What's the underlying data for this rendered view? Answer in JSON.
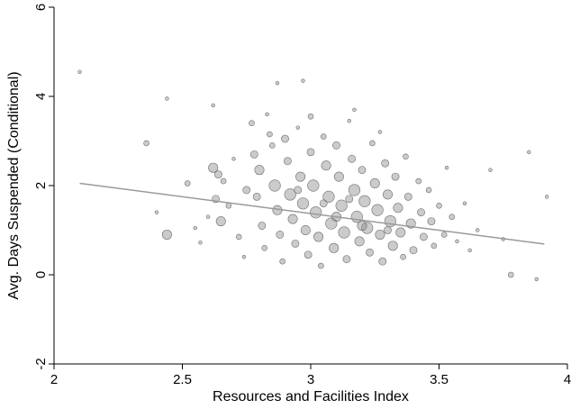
{
  "chart_data": {
    "type": "scatter",
    "title": "",
    "xlabel": "Resources and Facilities Index",
    "ylabel": "Avg. Days Suspended (Conditional)",
    "xlim": [
      2,
      4
    ],
    "ylim": [
      -2,
      6
    ],
    "x_ticks": [
      2,
      2.5,
      3,
      3.5,
      4
    ],
    "x_tick_labels": [
      "2",
      "2.5",
      "3",
      "3.5",
      "4"
    ],
    "y_ticks": [
      -2,
      0,
      2,
      4,
      6
    ],
    "y_tick_labels": [
      "-2",
      "0",
      "2",
      "4",
      "6"
    ],
    "grid": false,
    "legend": "none",
    "marker_style": "hollow circles, size proportional to weight",
    "marker_color": "#8c8c8c",
    "fit_line": {
      "type": "linear",
      "x": [
        2.1,
        3.91
      ],
      "y": [
        2.05,
        0.69
      ],
      "color": "#9a9a9a"
    },
    "series": [
      {
        "points": [
          [
            2.1,
            4.55,
            1
          ],
          [
            2.44,
            3.95,
            1
          ],
          [
            2.62,
            3.8,
            1
          ],
          [
            2.36,
            2.95,
            2
          ],
          [
            2.4,
            1.4,
            1
          ],
          [
            2.44,
            0.9,
            4
          ],
          [
            2.52,
            2.05,
            2
          ],
          [
            2.55,
            1.05,
            1
          ],
          [
            2.57,
            0.72,
            1
          ],
          [
            2.6,
            1.3,
            1
          ],
          [
            2.62,
            2.4,
            4
          ],
          [
            2.64,
            2.25,
            3
          ],
          [
            2.66,
            2.1,
            2
          ],
          [
            2.63,
            1.7,
            3
          ],
          [
            2.65,
            1.2,
            4
          ],
          [
            2.68,
            1.55,
            2
          ],
          [
            2.7,
            2.6,
            1
          ],
          [
            2.72,
            0.85,
            2
          ],
          [
            2.74,
            0.4,
            1
          ],
          [
            2.75,
            1.9,
            3
          ],
          [
            2.77,
            3.4,
            2
          ],
          [
            2.78,
            2.7,
            3
          ],
          [
            2.8,
            2.35,
            4
          ],
          [
            2.79,
            1.75,
            3
          ],
          [
            2.81,
            1.1,
            3
          ],
          [
            2.82,
            0.6,
            2
          ],
          [
            2.83,
            3.6,
            1
          ],
          [
            2.84,
            3.15,
            2
          ],
          [
            2.85,
            2.9,
            2
          ],
          [
            2.86,
            2.0,
            5
          ],
          [
            2.87,
            1.45,
            4
          ],
          [
            2.88,
            0.9,
            3
          ],
          [
            2.89,
            0.3,
            2
          ],
          [
            2.9,
            3.05,
            3
          ],
          [
            2.91,
            2.55,
            3
          ],
          [
            2.92,
            1.8,
            5
          ],
          [
            2.93,
            1.25,
            4
          ],
          [
            2.94,
            0.7,
            3
          ],
          [
            2.95,
            3.3,
            1
          ],
          [
            2.96,
            2.2,
            4
          ],
          [
            2.97,
            1.6,
            5
          ],
          [
            2.98,
            1.0,
            4
          ],
          [
            2.99,
            0.45,
            3
          ],
          [
            3.0,
            3.55,
            2
          ],
          [
            3.0,
            2.75,
            3
          ],
          [
            3.01,
            2.0,
            5
          ],
          [
            3.02,
            1.4,
            5
          ],
          [
            3.03,
            0.85,
            4
          ],
          [
            3.04,
            0.2,
            2
          ],
          [
            3.05,
            3.1,
            2
          ],
          [
            3.06,
            2.45,
            4
          ],
          [
            3.07,
            1.75,
            5
          ],
          [
            3.08,
            1.15,
            5
          ],
          [
            3.09,
            0.6,
            4
          ],
          [
            3.1,
            2.9,
            3
          ],
          [
            3.11,
            2.2,
            4
          ],
          [
            3.12,
            1.55,
            5
          ],
          [
            3.13,
            0.95,
            5
          ],
          [
            3.14,
            0.35,
            3
          ],
          [
            3.15,
            3.45,
            1
          ],
          [
            3.16,
            2.6,
            3
          ],
          [
            3.17,
            1.9,
            5
          ],
          [
            3.18,
            1.3,
            5
          ],
          [
            3.19,
            0.75,
            4
          ],
          [
            3.2,
            2.35,
            3
          ],
          [
            3.21,
            1.65,
            5
          ],
          [
            3.22,
            1.05,
            5
          ],
          [
            3.23,
            0.5,
            3
          ],
          [
            3.24,
            2.95,
            2
          ],
          [
            3.25,
            2.05,
            4
          ],
          [
            3.26,
            1.45,
            5
          ],
          [
            3.27,
            0.9,
            4
          ],
          [
            3.28,
            0.3,
            3
          ],
          [
            3.29,
            2.5,
            3
          ],
          [
            3.3,
            1.8,
            4
          ],
          [
            3.31,
            1.2,
            5
          ],
          [
            3.32,
            0.65,
            4
          ],
          [
            3.33,
            2.2,
            3
          ],
          [
            3.34,
            1.5,
            4
          ],
          [
            3.35,
            0.95,
            4
          ],
          [
            3.36,
            0.4,
            2
          ],
          [
            3.37,
            2.65,
            2
          ],
          [
            3.38,
            1.75,
            3
          ],
          [
            3.39,
            1.15,
            4
          ],
          [
            3.4,
            0.55,
            3
          ],
          [
            3.42,
            2.1,
            2
          ],
          [
            3.43,
            1.4,
            3
          ],
          [
            3.44,
            0.85,
            3
          ],
          [
            3.46,
            1.9,
            2
          ],
          [
            3.47,
            1.2,
            3
          ],
          [
            3.48,
            0.65,
            2
          ],
          [
            3.5,
            1.55,
            2
          ],
          [
            3.52,
            0.9,
            2
          ],
          [
            3.53,
            2.4,
            1
          ],
          [
            3.55,
            1.3,
            2
          ],
          [
            3.57,
            0.75,
            1
          ],
          [
            3.6,
            1.6,
            1
          ],
          [
            3.62,
            0.55,
            1
          ],
          [
            3.65,
            1.0,
            1
          ],
          [
            3.7,
            2.35,
            1
          ],
          [
            3.75,
            0.8,
            1
          ],
          [
            3.78,
            0.0,
            2
          ],
          [
            3.85,
            2.75,
            1
          ],
          [
            3.88,
            -0.1,
            1
          ],
          [
            3.92,
            1.75,
            1
          ],
          [
            2.87,
            4.3,
            1
          ],
          [
            2.97,
            4.35,
            1
          ],
          [
            3.17,
            3.7,
            1
          ],
          [
            3.27,
            3.2,
            1
          ],
          [
            3.05,
            1.6,
            3
          ],
          [
            3.1,
            1.3,
            4
          ],
          [
            3.2,
            1.1,
            4
          ],
          [
            3.3,
            1.0,
            3
          ],
          [
            3.15,
            1.7,
            3
          ],
          [
            2.95,
            1.9,
            3
          ]
        ]
      }
    ]
  }
}
